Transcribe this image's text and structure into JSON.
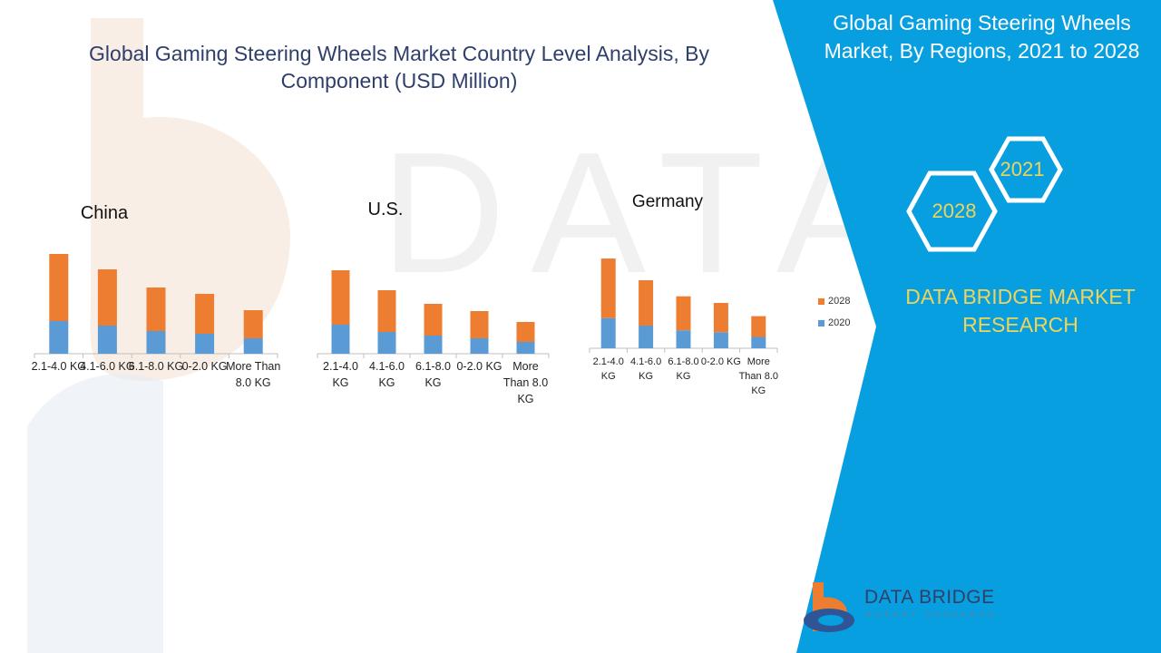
{
  "header": {
    "title": "Global Gaming Steering Wheels Market Country Level Analysis, By Component (USD Million)"
  },
  "side_panel": {
    "title": "Global Gaming Steering Wheels Market, By Regions, 2021 to 2028",
    "hex_year_a": "2021",
    "hex_year_b": "2028",
    "brand": "DATA BRIDGE MARKET RESEARCH",
    "logo_name": "DATA BRIDGE",
    "logo_tagline": "MARKET RESEARCH"
  },
  "colors": {
    "series_2020": "#5b9bd5",
    "series_2028": "#ed7d31",
    "panel_blue": "#079fe0",
    "accent_yellow": "#f2d35a",
    "title_navy": "#2f3f6b"
  },
  "legend": [
    "2028",
    "2020"
  ],
  "chart_data": [
    {
      "type": "bar",
      "stacked": true,
      "title": "China",
      "categories": [
        "2.1-4.0 KG",
        "4.1-6.0 KG",
        "6.1-8.0 KG",
        "0-2.0 KG",
        "More Than 8.0 KG"
      ],
      "series": [
        {
          "name": "2020",
          "values": [
            36,
            31,
            25,
            22,
            17
          ]
        },
        {
          "name": "2028",
          "values": [
            74,
            62,
            48,
            44,
            31
          ]
        }
      ],
      "ylim": [
        0,
        112
      ]
    },
    {
      "type": "bar",
      "stacked": true,
      "title": "U.S.",
      "categories": [
        "2.1-4.0 KG",
        "4.1-6.0 KG",
        "6.1-8.0 KG",
        "0-2.0 KG",
        "More Than 8.0 KG"
      ],
      "series": [
        {
          "name": "2020",
          "values": [
            32,
            24,
            20,
            17,
            13
          ]
        },
        {
          "name": "2028",
          "values": [
            60,
            46,
            35,
            30,
            22
          ]
        }
      ],
      "ylim": [
        0,
        96
      ]
    },
    {
      "type": "bar",
      "stacked": true,
      "title": "Germany",
      "categories": [
        "2.1-4.0 KG",
        "4.1-6.0 KG",
        "6.1-8.0 KG",
        "0-2.0 KG",
        "More Than 8.0 KG"
      ],
      "series": [
        {
          "name": "2020",
          "values": [
            32,
            24,
            19,
            17,
            12
          ]
        },
        {
          "name": "2028",
          "values": [
            63,
            48,
            36,
            31,
            22
          ]
        }
      ],
      "ylim": [
        0,
        96
      ]
    }
  ]
}
